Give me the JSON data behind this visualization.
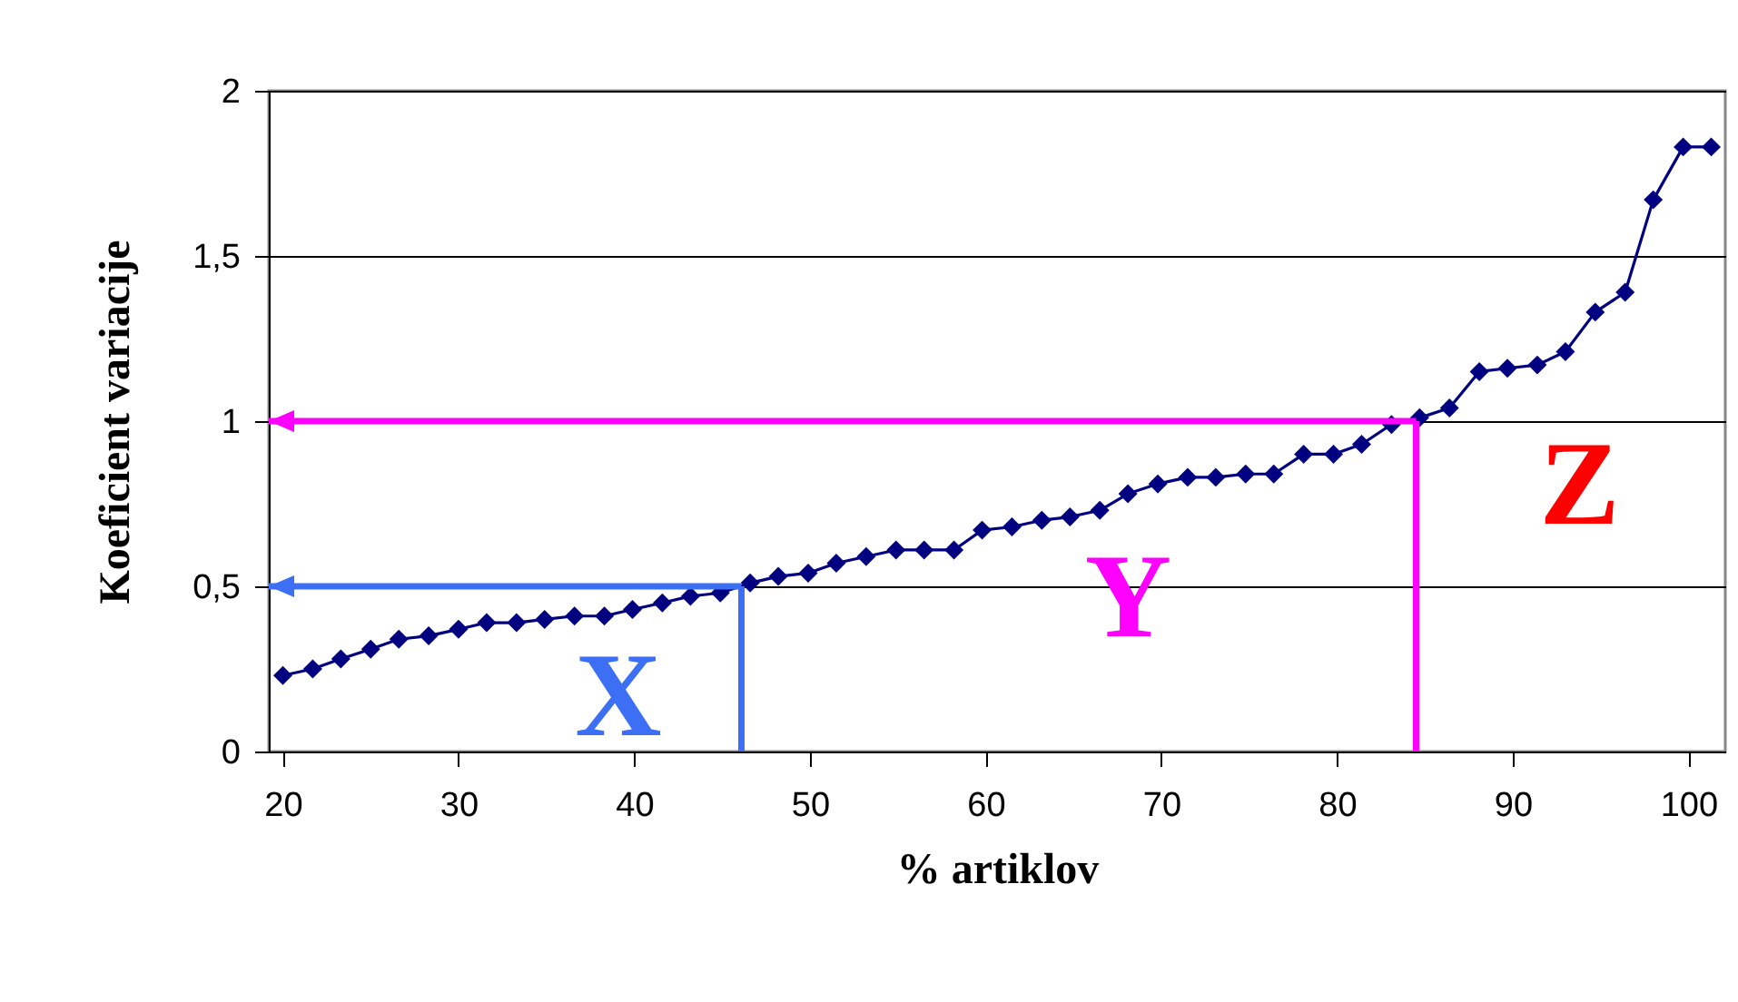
{
  "chart_data": {
    "type": "line",
    "xlabel": "% artiklov",
    "ylabel": "Koeficient variacije",
    "x": [
      20,
      21.7,
      23.3,
      25,
      26.6,
      28.3,
      30,
      31.6,
      33.3,
      34.9,
      36.6,
      38.3,
      39.9,
      41.6,
      43.2,
      44.9,
      46.6,
      48.2,
      49.9,
      51.5,
      53.2,
      54.9,
      56.5,
      58.2,
      59.8,
      61.5,
      63.2,
      64.8,
      66.5,
      68.1,
      69.8,
      71.5,
      73.1,
      74.8,
      76.4,
      78.1,
      79.8,
      81.4,
      83.1,
      84.7,
      86.4,
      88.1,
      89.7,
      91.4,
      93,
      94.7,
      96.4,
      98,
      99.7,
      101.3
    ],
    "series": [
      {
        "color": "#000080",
        "values": [
          0.23,
          0.25,
          0.28,
          0.31,
          0.34,
          0.35,
          0.37,
          0.39,
          0.39,
          0.4,
          0.41,
          0.41,
          0.43,
          0.45,
          0.47,
          0.48,
          0.51,
          0.53,
          0.54,
          0.57,
          0.59,
          0.61,
          0.61,
          0.61,
          0.67,
          0.68,
          0.7,
          0.71,
          0.73,
          0.78,
          0.81,
          0.83,
          0.83,
          0.84,
          0.84,
          0.9,
          0.9,
          0.93,
          0.99,
          1.01,
          1.04,
          1.15,
          1.16,
          1.17,
          1.21,
          1.33,
          1.39,
          1.67,
          1.83,
          1.83
        ]
      }
    ],
    "xlim": [
      19.2,
      102.1
    ],
    "xticks": [
      20,
      30,
      40,
      50,
      60,
      70,
      80,
      90,
      100
    ],
    "ylim": [
      0,
      2
    ],
    "yticks": [
      0,
      {
        "value": 0.5,
        "label": "0,5"
      },
      1,
      {
        "value": 1.5,
        "label": "1,5"
      },
      2
    ],
    "grid": "y",
    "marker": "diamond",
    "line_style": "solid",
    "ref_lines": [
      {
        "axis": "x",
        "value": 46.1,
        "color": "#3d6ff5"
      },
      {
        "axis": "y",
        "value": 0.5,
        "color": "#3d6ff5"
      },
      {
        "axis": "x",
        "value": 84.5,
        "color": "#ff00ff"
      },
      {
        "axis": "y",
        "value": 1,
        "color": "#ff00ff"
      }
    ],
    "annotations": [
      "X",
      "Y",
      "Z"
    ]
  }
}
